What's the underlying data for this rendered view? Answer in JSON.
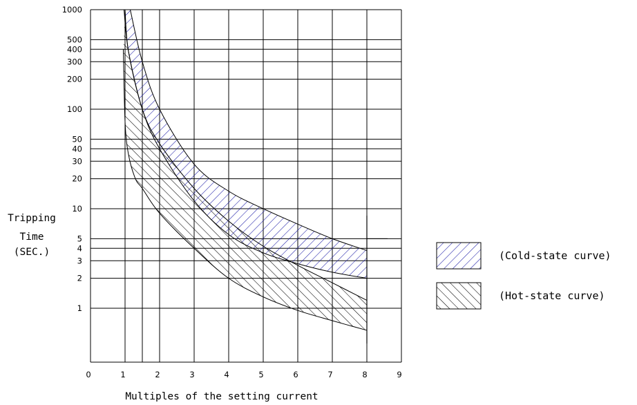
{
  "chart_data": {
    "type": "area",
    "xlabel": "Multiples of the setting current",
    "ylabel_lines": [
      "Tripping",
      "Time",
      "(SEC.)"
    ],
    "x_ticks": [
      0,
      1,
      2,
      3,
      4,
      5,
      6,
      7,
      8,
      9
    ],
    "x_tick_labels": [
      "0",
      "1",
      "2",
      "3",
      "4",
      "5",
      "6",
      "7",
      "8",
      "9"
    ],
    "xlim": [
      0,
      9
    ],
    "y_scale": "log",
    "ylim": [
      0.12,
      1000
    ],
    "y_ticks": [
      1000,
      500,
      400,
      300,
      200,
      100,
      50,
      40,
      30,
      20,
      10,
      5,
      4,
      3,
      2,
      1
    ],
    "y_tick_labels": [
      "1000",
      "500",
      "400",
      "300",
      "200",
      "100",
      "50",
      "40",
      "30",
      "20",
      "10",
      "5",
      "4",
      "3",
      "2",
      "1"
    ],
    "extra_vertical_grid": [
      1.5
    ],
    "grid": true,
    "series": [
      {
        "name": "(Cold-state curve)",
        "color": "#1a1aa6",
        "hatch": "forward-diagonal",
        "upper": {
          "x": [
            1.15,
            1.5,
            2,
            3,
            4,
            5,
            6,
            7,
            8
          ],
          "y": [
            1000,
            300,
            100,
            28,
            15,
            10,
            7,
            5,
            3.8
          ]
        },
        "lower": {
          "x": [
            0.97,
            1.1,
            1.5,
            2,
            3,
            4,
            5,
            6,
            7,
            8
          ],
          "y": [
            1000,
            380,
            100,
            40,
            12,
            5.5,
            3.6,
            2.8,
            2.3,
            2.0
          ]
        }
      },
      {
        "name": "(Hot-state curve)",
        "color": "#000000",
        "hatch": "backward-diagonal",
        "upper": {
          "x": [
            1.0,
            1.1,
            1.5,
            2,
            3,
            4,
            5,
            6,
            7,
            8
          ],
          "y": [
            1000,
            380,
            100,
            45,
            16,
            7.5,
            4.2,
            2.7,
            1.8,
            1.2
          ]
        },
        "lower": {
          "x": [
            0.95,
            1.0,
            1.1,
            1.3,
            1.5,
            2,
            3,
            4,
            5,
            6,
            7,
            8
          ],
          "y": [
            400,
            75,
            35,
            20,
            16,
            9,
            4,
            2,
            1.3,
            0.95,
            0.75,
            0.6
          ]
        }
      }
    ],
    "legend": {
      "position": "right",
      "entries": [
        "(Cold-state curve)",
        "(Hot-state curve)"
      ]
    }
  }
}
